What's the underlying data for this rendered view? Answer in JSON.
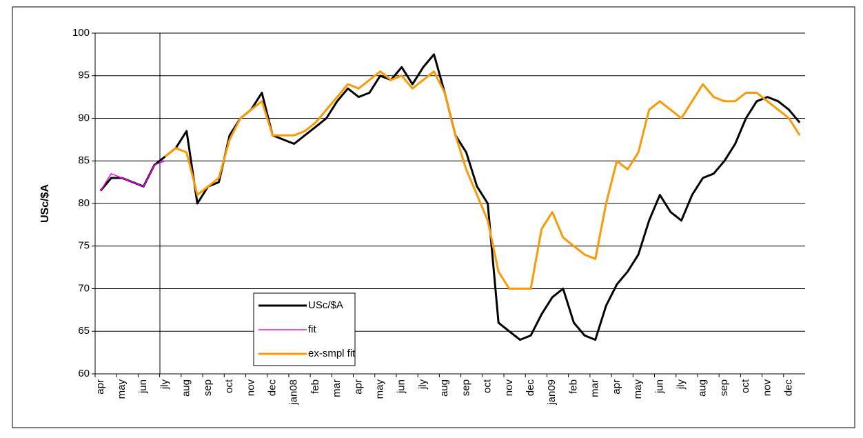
{
  "chart_data": {
    "type": "line",
    "y_label": "USc/$A",
    "categories": [
      "apr",
      null,
      "may",
      null,
      "jun",
      null,
      "jly",
      null,
      "aug",
      null,
      "sep",
      null,
      "oct",
      null,
      "nov",
      null,
      "dec",
      null,
      "jan08",
      null,
      "feb",
      null,
      "mar",
      null,
      "apr",
      null,
      "may",
      null,
      "jun",
      null,
      "jly",
      null,
      "aug",
      null,
      "sep",
      null,
      "oct",
      null,
      "nov",
      null,
      "dec",
      null,
      "jan09",
      null,
      "feb",
      null,
      "mar",
      null,
      "apr",
      null,
      "may",
      null,
      "jun",
      null,
      "jly",
      null,
      "aug",
      null,
      "sep",
      null,
      "oct",
      null,
      "nov",
      null,
      "dec",
      null
    ],
    "series": [
      {
        "name": "USc/$A",
        "color": "#000000",
        "values": [
          81.5,
          83,
          83,
          82.5,
          82,
          84.5,
          85.5,
          86.5,
          88.5,
          80,
          82,
          82.5,
          88,
          90,
          91,
          93,
          88,
          87.5,
          87,
          88,
          89,
          90,
          92,
          93.5,
          92.5,
          93,
          95,
          94.5,
          96,
          94,
          96,
          97.5,
          93,
          88,
          86,
          82,
          80,
          66,
          65,
          64,
          64.5,
          67,
          69,
          70,
          66,
          64.5,
          64,
          68,
          70.5,
          72,
          74,
          78,
          81,
          79,
          78,
          81,
          83,
          83.5,
          85,
          87,
          90,
          92,
          92.5,
          92,
          91,
          89.5
        ]
      },
      {
        "name": "fit",
        "color": "#ff00ff",
        "values": [
          81.5,
          83.5,
          83,
          82.5,
          82,
          84.5,
          85,
          null,
          null,
          null,
          null,
          null,
          null,
          null,
          null,
          null,
          null,
          null,
          null,
          null,
          null,
          null,
          null,
          null,
          null,
          null,
          null,
          null,
          null,
          null,
          null,
          null,
          null,
          null,
          null,
          null,
          null,
          null,
          null,
          null,
          null,
          null,
          null,
          null,
          null,
          null,
          null,
          null,
          null,
          null,
          null,
          null,
          null,
          null,
          null,
          null,
          null,
          null,
          null,
          null,
          null,
          null,
          null,
          null,
          null,
          null
        ]
      },
      {
        "name": "ex-smpl fit",
        "color": "#ff9900",
        "values": [
          null,
          null,
          null,
          null,
          null,
          null,
          85.5,
          86.5,
          86,
          81,
          82,
          83,
          87.5,
          90,
          91,
          92,
          88,
          88,
          88,
          88.5,
          89.5,
          91,
          92.5,
          94,
          93.5,
          94.5,
          95.5,
          94.5,
          95,
          93.5,
          94.5,
          95.5,
          93,
          88,
          84,
          81,
          78,
          72,
          70,
          70,
          70,
          77,
          79,
          76,
          75,
          74,
          73.5,
          80,
          85,
          84,
          86,
          91,
          92,
          91,
          90,
          92,
          94,
          92.5,
          92,
          92,
          93,
          93,
          92,
          91,
          90,
          88
        ]
      }
    ],
    "ylim": [
      60,
      100
    ],
    "yticks": [
      60,
      65,
      70,
      75,
      80,
      85,
      90,
      95,
      100
    ],
    "grid": true
  }
}
